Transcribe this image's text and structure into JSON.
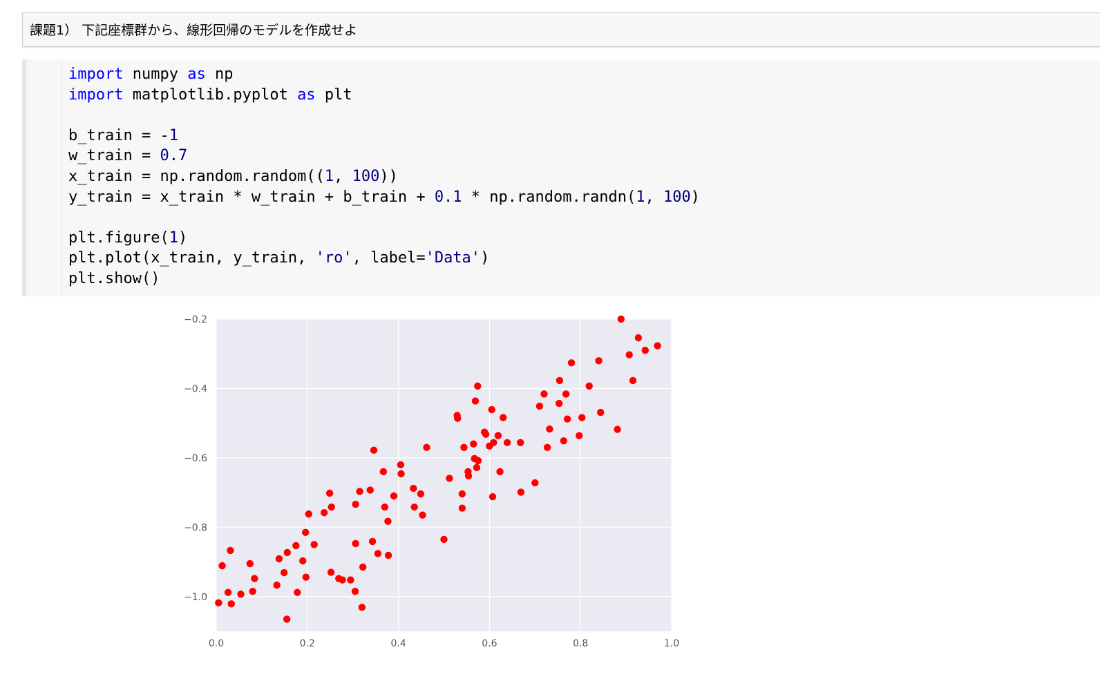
{
  "markdown_cell": {
    "text": "課題1） 下記座標群から、線形回帰のモデルを作成せよ"
  },
  "code_cell": {
    "lines": [
      [
        {
          "t": "import",
          "c": "kw"
        },
        {
          "t": " numpy ",
          "c": "op"
        },
        {
          "t": "as",
          "c": "kw"
        },
        {
          "t": " np",
          "c": "op"
        }
      ],
      [
        {
          "t": "import",
          "c": "kw"
        },
        {
          "t": " matplotlib.pyplot ",
          "c": "op"
        },
        {
          "t": "as",
          "c": "kw"
        },
        {
          "t": " plt",
          "c": "op"
        }
      ],
      [],
      [
        {
          "t": "b_train = -",
          "c": "op"
        },
        {
          "t": "1",
          "c": "num"
        }
      ],
      [
        {
          "t": "w_train = ",
          "c": "op"
        },
        {
          "t": "0.7",
          "c": "num"
        }
      ],
      [
        {
          "t": "x_train = np.random.random((",
          "c": "op"
        },
        {
          "t": "1",
          "c": "num"
        },
        {
          "t": ", ",
          "c": "op"
        },
        {
          "t": "100",
          "c": "num"
        },
        {
          "t": "))",
          "c": "op"
        }
      ],
      [
        {
          "t": "y_train = x_train * w_train + b_train + ",
          "c": "op"
        },
        {
          "t": "0.1",
          "c": "num"
        },
        {
          "t": " * np.random.randn(",
          "c": "op"
        },
        {
          "t": "1",
          "c": "num"
        },
        {
          "t": ", ",
          "c": "op"
        },
        {
          "t": "100",
          "c": "num"
        },
        {
          "t": ")",
          "c": "op"
        }
      ],
      [],
      [
        {
          "t": "plt.figure(",
          "c": "op"
        },
        {
          "t": "1",
          "c": "num"
        },
        {
          "t": ")",
          "c": "op"
        }
      ],
      [
        {
          "t": "plt.plot(x_train, y_train, ",
          "c": "op"
        },
        {
          "t": "'ro'",
          "c": "str"
        },
        {
          "t": ", label=",
          "c": "op"
        },
        {
          "t": "'Data'",
          "c": "str"
        },
        {
          "t": ")",
          "c": "op"
        }
      ],
      [
        {
          "t": "plt.show()",
          "c": "op"
        }
      ]
    ]
  },
  "chart_data": {
    "type": "scatter",
    "xlim": [
      0.0,
      1.0
    ],
    "ylim": [
      -1.1,
      -0.2
    ],
    "xticks": [
      0.0,
      0.2,
      0.4,
      0.6,
      0.8,
      1.0
    ],
    "xtick_labels": [
      "0.0",
      "0.2",
      "0.4",
      "0.6",
      "0.8",
      "1.0"
    ],
    "yticks": [
      -0.2,
      -0.4,
      -0.6,
      -0.8,
      -1.0
    ],
    "ytick_labels": [
      "−0.2",
      "−0.4",
      "−0.6",
      "−0.8",
      "−1.0"
    ],
    "grid": true,
    "background_color": "#eaeaf2",
    "grid_color": "#ffffff",
    "marker_color": "#ff0000",
    "series": [
      {
        "points": [
          [
            0.005,
            -1.018
          ],
          [
            0.013,
            -0.911
          ],
          [
            0.026,
            -0.988
          ],
          [
            0.031,
            -0.867
          ],
          [
            0.033,
            -1.021
          ],
          [
            0.054,
            -0.993
          ],
          [
            0.074,
            -0.905
          ],
          [
            0.08,
            -0.985
          ],
          [
            0.084,
            -0.948
          ],
          [
            0.133,
            -0.967
          ],
          [
            0.138,
            -0.891
          ],
          [
            0.149,
            -0.931
          ],
          [
            0.155,
            -1.065
          ],
          [
            0.156,
            -0.873
          ],
          [
            0.175,
            -0.853
          ],
          [
            0.178,
            -0.988
          ],
          [
            0.19,
            -0.897
          ],
          [
            0.196,
            -0.815
          ],
          [
            0.197,
            -0.944
          ],
          [
            0.203,
            -0.762
          ],
          [
            0.215,
            -0.85
          ],
          [
            0.237,
            -0.758
          ],
          [
            0.249,
            -0.702
          ],
          [
            0.252,
            -0.93
          ],
          [
            0.253,
            -0.742
          ],
          [
            0.269,
            -0.948
          ],
          [
            0.277,
            -0.952
          ],
          [
            0.295,
            -0.952
          ],
          [
            0.305,
            -0.985
          ],
          [
            0.306,
            -0.734
          ],
          [
            0.306,
            -0.847
          ],
          [
            0.315,
            -0.697
          ],
          [
            0.32,
            -1.031
          ],
          [
            0.322,
            -0.915
          ],
          [
            0.338,
            -0.693
          ],
          [
            0.343,
            -0.841
          ],
          [
            0.346,
            -0.578
          ],
          [
            0.355,
            -0.876
          ],
          [
            0.367,
            -0.64
          ],
          [
            0.37,
            -0.742
          ],
          [
            0.377,
            -0.783
          ],
          [
            0.378,
            -0.881
          ],
          [
            0.39,
            -0.71
          ],
          [
            0.405,
            -0.62
          ],
          [
            0.406,
            -0.646
          ],
          [
            0.433,
            -0.688
          ],
          [
            0.435,
            -0.742
          ],
          [
            0.449,
            -0.704
          ],
          [
            0.453,
            -0.765
          ],
          [
            0.462,
            -0.57
          ],
          [
            0.5,
            -0.835
          ],
          [
            0.512,
            -0.659
          ],
          [
            0.529,
            -0.478
          ],
          [
            0.53,
            -0.486
          ],
          [
            0.54,
            -0.704
          ],
          [
            0.54,
            -0.745
          ],
          [
            0.544,
            -0.57
          ],
          [
            0.553,
            -0.64
          ],
          [
            0.554,
            -0.652
          ],
          [
            0.565,
            -0.56
          ],
          [
            0.567,
            -0.602
          ],
          [
            0.569,
            -0.436
          ],
          [
            0.572,
            -0.628
          ],
          [
            0.574,
            -0.393
          ],
          [
            0.575,
            -0.608
          ],
          [
            0.589,
            -0.526
          ],
          [
            0.592,
            -0.532
          ],
          [
            0.6,
            -0.566
          ],
          [
            0.605,
            -0.461
          ],
          [
            0.607,
            -0.712
          ],
          [
            0.609,
            -0.556
          ],
          [
            0.619,
            -0.536
          ],
          [
            0.623,
            -0.64
          ],
          [
            0.63,
            -0.484
          ],
          [
            0.639,
            -0.556
          ],
          [
            0.668,
            -0.556
          ],
          [
            0.669,
            -0.699
          ],
          [
            0.7,
            -0.672
          ],
          [
            0.71,
            -0.451
          ],
          [
            0.72,
            -0.416
          ],
          [
            0.727,
            -0.57
          ],
          [
            0.732,
            -0.517
          ],
          [
            0.753,
            -0.443
          ],
          [
            0.754,
            -0.377
          ],
          [
            0.763,
            -0.551
          ],
          [
            0.768,
            -0.416
          ],
          [
            0.771,
            -0.488
          ],
          [
            0.78,
            -0.326
          ],
          [
            0.797,
            -0.536
          ],
          [
            0.803,
            -0.484
          ],
          [
            0.819,
            -0.393
          ],
          [
            0.84,
            -0.32
          ],
          [
            0.844,
            -0.469
          ],
          [
            0.881,
            -0.518
          ],
          [
            0.889,
            -0.2
          ],
          [
            0.907,
            -0.303
          ],
          [
            0.915,
            -0.377
          ],
          [
            0.927,
            -0.254
          ],
          [
            0.942,
            -0.29
          ],
          [
            0.969,
            -0.277
          ]
        ]
      }
    ]
  }
}
